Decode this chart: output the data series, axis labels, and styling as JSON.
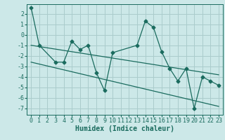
{
  "xlabel": "Humidex (Indice chaleur)",
  "background_color": "#cce8e8",
  "grid_color": "#aacccc",
  "line_color": "#1a6b5e",
  "xlim": [
    -0.5,
    23.5
  ],
  "ylim": [
    -7.6,
    2.9
  ],
  "yticks": [
    -7,
    -6,
    -5,
    -4,
    -3,
    -2,
    -1,
    0,
    1,
    2
  ],
  "xticks": [
    0,
    1,
    2,
    3,
    4,
    5,
    6,
    7,
    8,
    9,
    10,
    11,
    12,
    13,
    14,
    15,
    16,
    17,
    18,
    19,
    20,
    21,
    22,
    23
  ],
  "series1_x": [
    0,
    1,
    3,
    4,
    5,
    6,
    7,
    8,
    9,
    10,
    13,
    14,
    15,
    16,
    17,
    18,
    19,
    20,
    21,
    22,
    23
  ],
  "series1_y": [
    2.6,
    -1.0,
    -2.6,
    -2.6,
    -0.6,
    -1.4,
    -1.0,
    -3.6,
    -5.3,
    -1.7,
    -1.0,
    1.3,
    0.7,
    -1.6,
    -3.2,
    -4.4,
    -3.2,
    -7.0,
    -4.0,
    -4.4,
    -4.8
  ],
  "series2_x": [
    0,
    23
  ],
  "series2_y": [
    -1.0,
    -3.8
  ],
  "series3_x": [
    0,
    23
  ],
  "series3_y": [
    -2.6,
    -6.8
  ],
  "marker_size": 2.5,
  "line_width": 0.9,
  "font_size_label": 7,
  "font_size_tick": 6
}
